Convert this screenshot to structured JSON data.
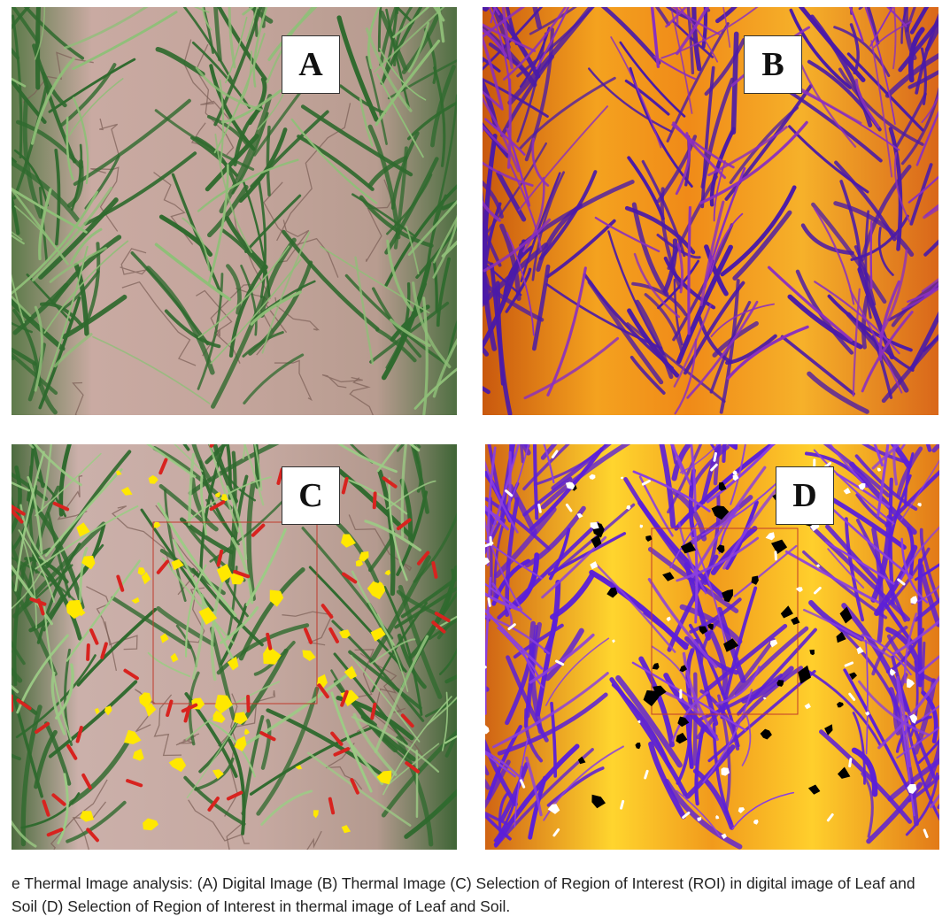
{
  "panels": {
    "a": {
      "label": "A",
      "content": "digital-image-wheat-leaf-soil"
    },
    "b": {
      "label": "B",
      "content": "thermal-image-wheat-leaf-soil"
    },
    "c": {
      "label": "C",
      "content": "digital-image-roi-selection"
    },
    "d": {
      "label": "D",
      "content": "thermal-image-roi-selection"
    }
  },
  "caption": "e Thermal Image analysis: (A) Digital Image (B) Thermal Image (C) Selection of Region of Interest (ROI) in digital image of Leaf and Soil (D) Selection of Region of Interest in thermal image of Leaf and Soil.",
  "colors": {
    "soil": "#bfa39a",
    "leaf": "#3f7a3a",
    "thermal_hot": "#ffd24a",
    "thermal_mid": "#ef8a1c",
    "thermal_leaf": "#5a1fb8",
    "roi_leaf_digital": "#d8231f",
    "roi_soil_digital": "#ffe800",
    "roi_leaf_thermal": "#ffffff",
    "roi_soil_thermal": "#000000"
  }
}
